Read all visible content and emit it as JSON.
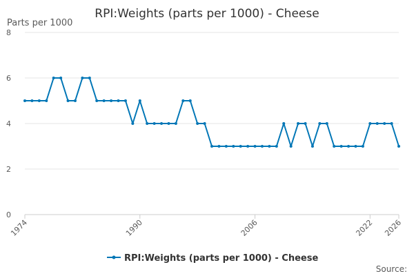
{
  "chart_data": {
    "type": "line",
    "title": "RPI:Weights (parts per 1000) - Cheese",
    "ylabel": "Parts per 1000",
    "xlabel": "",
    "xlim": [
      1974,
      2026
    ],
    "ylim": [
      0,
      8
    ],
    "yticks": [
      0,
      2,
      4,
      6,
      8
    ],
    "xticks": [
      1974,
      1990,
      2006,
      2022,
      2026
    ],
    "grid": true,
    "legend_position": "bottom",
    "credit": "Source:",
    "colors": {
      "series": "#0076b6",
      "grid": "#e6e6e6",
      "axis": "#cccccc"
    },
    "series": [
      {
        "name": "RPI:Weights (parts per 1000) - Cheese",
        "x": [
          1974,
          1975,
          1976,
          1977,
          1978,
          1979,
          1980,
          1981,
          1982,
          1983,
          1984,
          1985,
          1986,
          1987,
          1988,
          1989,
          1990,
          1991,
          1992,
          1993,
          1994,
          1995,
          1996,
          1997,
          1998,
          1999,
          2000,
          2001,
          2002,
          2003,
          2004,
          2005,
          2006,
          2007,
          2008,
          2009,
          2010,
          2011,
          2012,
          2013,
          2014,
          2015,
          2016,
          2017,
          2018,
          2019,
          2020,
          2021,
          2022,
          2023,
          2024,
          2025,
          2026
        ],
        "values": [
          5,
          5,
          5,
          5,
          6,
          6,
          5,
          5,
          6,
          6,
          5,
          5,
          5,
          5,
          5,
          4,
          5,
          4,
          4,
          4,
          4,
          4,
          5,
          5,
          4,
          4,
          3,
          3,
          3,
          3,
          3,
          3,
          3,
          3,
          3,
          3,
          4,
          3,
          4,
          4,
          3,
          4,
          4,
          3,
          3,
          3,
          3,
          3,
          4,
          4,
          4,
          4,
          3
        ]
      }
    ]
  }
}
